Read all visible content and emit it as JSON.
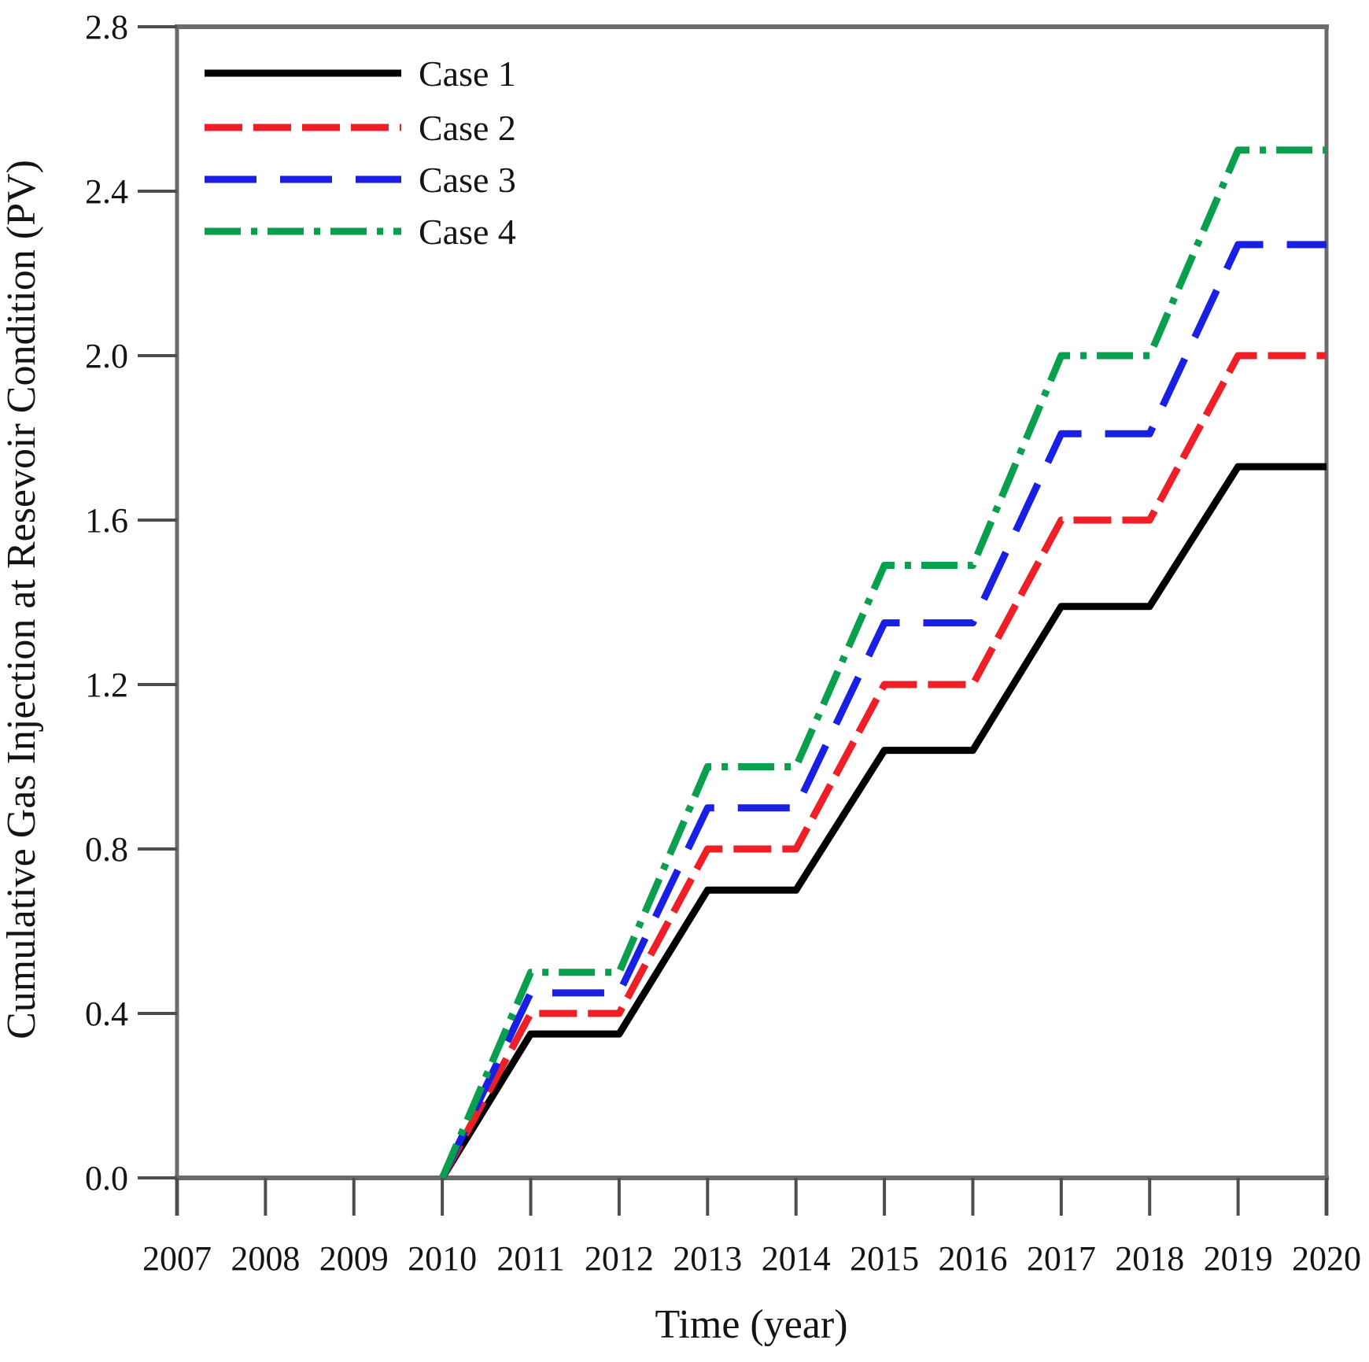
{
  "figure": {
    "background": "#ffffff",
    "text_color": "#141414",
    "spine_color": "#6a6a6a",
    "tick_color": "#4d4d4d"
  },
  "chart_data": {
    "type": "line",
    "title": "",
    "xlabel": "Time (year)",
    "ylabel": "Cumulative Gas Injection at Resevoir Condition (PV)",
    "xlim": [
      2007,
      2020
    ],
    "ylim": [
      0,
      2.8
    ],
    "xticks": [
      2007,
      2008,
      2009,
      2010,
      2011,
      2012,
      2013,
      2014,
      2015,
      2016,
      2017,
      2018,
      2019,
      2020
    ],
    "xtick_labels": [
      "2007",
      "2008",
      "2009",
      "2010",
      "2011",
      "2012",
      "2013",
      "2014",
      "2015",
      "2016",
      "2017",
      "2018",
      "2019",
      "2020"
    ],
    "yticks": [
      0.0,
      0.4,
      0.8,
      1.2,
      1.6,
      2.0,
      2.4,
      2.8
    ],
    "ytick_labels": [
      "0.0",
      "0.4",
      "0.8",
      "1.2",
      "1.6",
      "2.0",
      "2.4",
      "2.8"
    ],
    "grid": false,
    "legend_position": "upper-left-inside",
    "series": [
      {
        "name": "Case 1",
        "color": "#000000",
        "linestyle": "solid",
        "x": [
          2010,
          2011,
          2012,
          2013,
          2014,
          2015,
          2016,
          2017,
          2018,
          2019,
          2020
        ],
        "y": [
          0,
          0.35,
          0.35,
          0.7,
          0.7,
          1.04,
          1.04,
          1.39,
          1.39,
          1.73,
          1.73
        ]
      },
      {
        "name": "Case 2",
        "color": "#ee1f26",
        "linestyle": "dashed",
        "x": [
          2010,
          2011,
          2012,
          2013,
          2014,
          2015,
          2016,
          2017,
          2018,
          2019,
          2020
        ],
        "y": [
          0,
          0.4,
          0.4,
          0.8,
          0.8,
          1.2,
          1.2,
          1.6,
          1.6,
          2.0,
          2.0
        ]
      },
      {
        "name": "Case 3",
        "color": "#1a1fe4",
        "linestyle": "long-dash",
        "x": [
          2010,
          2011,
          2012,
          2013,
          2014,
          2015,
          2016,
          2017,
          2018,
          2019,
          2020
        ],
        "y": [
          0,
          0.45,
          0.45,
          0.9,
          0.9,
          1.35,
          1.35,
          1.81,
          1.81,
          2.27,
          2.27
        ]
      },
      {
        "name": "Case 4",
        "color": "#0a9f4e",
        "linestyle": "dash-dot",
        "x": [
          2010,
          2011,
          2012,
          2013,
          2014,
          2015,
          2016,
          2017,
          2018,
          2019,
          2020
        ],
        "y": [
          0,
          0.5,
          0.5,
          1.0,
          1.0,
          1.49,
          1.49,
          2.0,
          2.0,
          2.5,
          2.5
        ]
      }
    ]
  }
}
